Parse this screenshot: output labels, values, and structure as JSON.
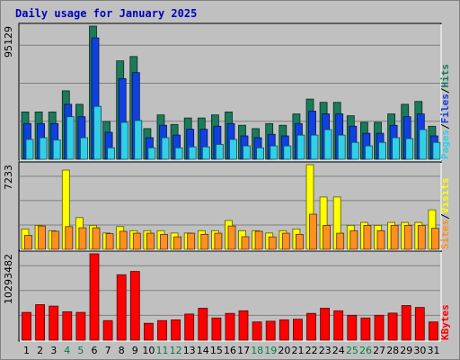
{
  "title": "Daily usage for January 2025",
  "colors": {
    "background": "#c0c0c0",
    "hits": "#1a7a5a",
    "files": "#1040e0",
    "pages": "#30d0e8",
    "visits": "#ffff00",
    "sites": "#ff9020",
    "kbytes": "#ff0000",
    "title": "#0000c0",
    "weekend_day": "#008040",
    "weekday": "#000000"
  },
  "chart_data": [
    {
      "type": "bar",
      "panel": "hits-files-pages",
      "ylabel": "Pages / Files / Hits",
      "ymax_label": "95129",
      "ylim": [
        0,
        95129
      ],
      "grid": true,
      "categories": [
        "1",
        "2",
        "3",
        "4",
        "5",
        "6",
        "7",
        "8",
        "9",
        "10",
        "11",
        "12",
        "13",
        "14",
        "15",
        "16",
        "17",
        "18",
        "19",
        "20",
        "21",
        "22",
        "23",
        "24",
        "25",
        "26",
        "27",
        "28",
        "29",
        "30",
        "31"
      ],
      "series": [
        {
          "name": "Hits",
          "values": [
            33800,
            33800,
            33800,
            48900,
            39300,
            95100,
            27000,
            70300,
            73400,
            21900,
            31700,
            24900,
            29500,
            29500,
            31700,
            33800,
            24300,
            21900,
            25500,
            24300,
            32400,
            43000,
            40700,
            40700,
            31100,
            26400,
            26400,
            32400,
            39300,
            41300,
            23600
          ]
        },
        {
          "name": "Files",
          "values": [
            25500,
            25500,
            25500,
            39300,
            30400,
            86700,
            19300,
            57600,
            61900,
            15400,
            24300,
            17300,
            21500,
            21500,
            23600,
            25500,
            16700,
            15400,
            17900,
            16700,
            25500,
            34400,
            32400,
            32400,
            23600,
            18600,
            18600,
            24300,
            30400,
            32400,
            16700
          ]
        },
        {
          "name": "Pages",
          "values": [
            14200,
            15400,
            13800,
            30400,
            15400,
            37800,
            8200,
            26400,
            27700,
            8200,
            15400,
            8200,
            8900,
            8900,
            10700,
            14200,
            9600,
            8200,
            9600,
            9600,
            17300,
            17300,
            21200,
            17300,
            12100,
            9600,
            12100,
            15400,
            14800,
            21200,
            12100
          ]
        }
      ]
    },
    {
      "type": "bar",
      "panel": "visits-sites",
      "ylabel": "Sites / Visits",
      "ymax_label": "7233",
      "ylim": [
        0,
        7233
      ],
      "grid": true,
      "categories": [
        "1",
        "2",
        "3",
        "4",
        "5",
        "6",
        "7",
        "8",
        "9",
        "10",
        "11",
        "12",
        "13",
        "14",
        "15",
        "16",
        "17",
        "18",
        "19",
        "20",
        "21",
        "22",
        "23",
        "24",
        "25",
        "26",
        "27",
        "28",
        "29",
        "30",
        "31"
      ],
      "series": [
        {
          "name": "Visits",
          "values": [
            1740,
            2050,
            1590,
            6770,
            2710,
            2050,
            1390,
            1940,
            1590,
            1590,
            1590,
            1390,
            1390,
            1590,
            1590,
            2460,
            1590,
            1590,
            1390,
            1590,
            1740,
            7230,
            4470,
            4470,
            2050,
            2300,
            2050,
            2300,
            2300,
            2300,
            3370
          ]
        },
        {
          "name": "Sites",
          "values": [
            1190,
            1990,
            1540,
            1940,
            1840,
            1840,
            1340,
            1540,
            1380,
            1380,
            1280,
            1060,
            1380,
            1280,
            1380,
            1990,
            1080,
            1540,
            1060,
            1380,
            1280,
            3000,
            2050,
            1380,
            1590,
            2050,
            1590,
            2050,
            2050,
            2050,
            1790
          ]
        }
      ]
    },
    {
      "type": "bar",
      "panel": "kbytes",
      "ylabel": "KBytes",
      "ymax_label": "10293482",
      "ylim": [
        0,
        10293482
      ],
      "grid": true,
      "categories": [
        "1",
        "2",
        "3",
        "4",
        "5",
        "6",
        "7",
        "8",
        "9",
        "10",
        "11",
        "12",
        "13",
        "14",
        "15",
        "16",
        "17",
        "18",
        "19",
        "20",
        "21",
        "22",
        "23",
        "24",
        "25",
        "26",
        "27",
        "28",
        "29",
        "30",
        "31"
      ],
      "series": [
        {
          "name": "KBytes",
          "values": [
            3310000,
            4240000,
            4060000,
            3390000,
            3310000,
            10290000,
            2340000,
            7800000,
            8190000,
            2020000,
            2340000,
            2420000,
            3120000,
            3820000,
            2650000,
            3190000,
            3510000,
            2180000,
            2260000,
            2420000,
            2500000,
            3190000,
            3820000,
            3510000,
            2970000,
            2650000,
            2970000,
            3230000,
            4130000,
            3900000,
            2180000
          ]
        }
      ]
    }
  ],
  "day_labels": [
    "1",
    "2",
    "3",
    "4",
    "5",
    "6",
    "7",
    "8",
    "9",
    "10",
    "11",
    "12",
    "13",
    "14",
    "15",
    "16",
    "17",
    "18",
    "19",
    "20",
    "21",
    "22",
    "23",
    "24",
    "25",
    "26",
    "27",
    "28",
    "29",
    "30",
    "31"
  ],
  "weekend_days": [
    "4",
    "5",
    "11",
    "12",
    "18",
    "19",
    "25",
    "26"
  ],
  "legend": {
    "pages": "Pages",
    "files": "Files",
    "hits": "Hits",
    "sites": "Sites",
    "visits": "Visits",
    "kbytes": "KBytes",
    "separator": "/"
  }
}
